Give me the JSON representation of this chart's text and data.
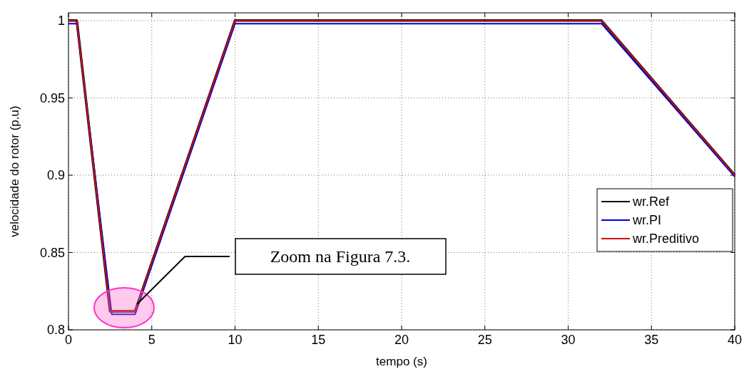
{
  "chart_data": {
    "type": "line",
    "xlabel": "tempo (s)",
    "ylabel": "velocidade do rotor (p.u)",
    "xlim": [
      0,
      40
    ],
    "ylim": [
      0.8,
      1.005
    ],
    "xticks": [
      0,
      5,
      10,
      15,
      20,
      25,
      30,
      35,
      40
    ],
    "yticks": [
      0.8,
      0.85,
      0.9,
      0.95,
      1
    ],
    "grid": true,
    "legend": "right",
    "line_style": "solid",
    "annotations": [
      "Zoom na Figura 7.3."
    ],
    "series": [
      {
        "name": "wr.Ref",
        "color": "#000000",
        "x": [
          0,
          0.5,
          2.5,
          4,
          10,
          32,
          40
        ],
        "values": [
          1,
          1,
          0.812,
          0.812,
          1,
          1,
          0.9
        ]
      },
      {
        "name": "wr.PI",
        "color": "#0000cc",
        "x": [
          0,
          0.5,
          2.6,
          4,
          10,
          32,
          40
        ],
        "values": [
          0.998,
          0.998,
          0.81,
          0.81,
          0.998,
          0.998,
          0.899
        ]
      },
      {
        "name": "wr.Preditivo",
        "color": "#cc1111",
        "x": [
          0,
          0.5,
          2.5,
          4,
          10,
          32,
          40
        ],
        "values": [
          1,
          1,
          0.812,
          0.812,
          1,
          1,
          0.9
        ]
      }
    ]
  }
}
